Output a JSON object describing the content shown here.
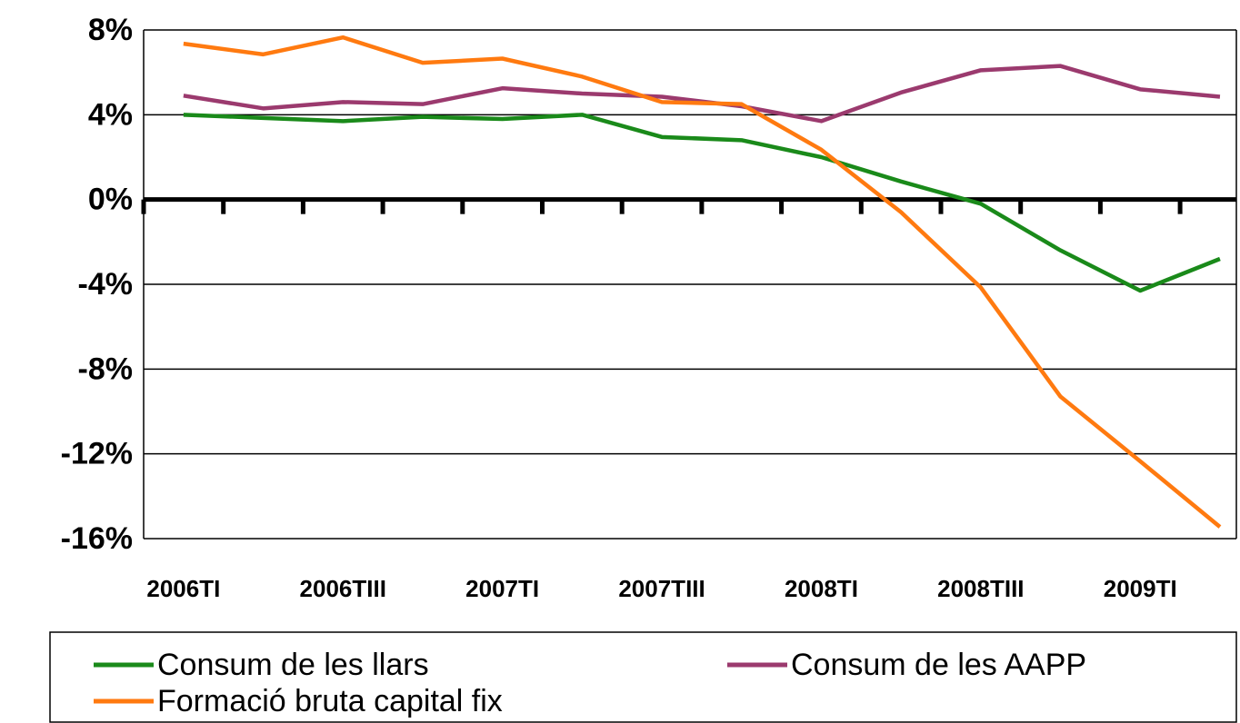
{
  "chart_data": {
    "type": "line",
    "categories": [
      "2006TI",
      null,
      "2006TIII",
      null,
      "2007TI",
      null,
      "2007TIII",
      null,
      "2008TI",
      null,
      "2008TIII",
      null,
      "2009TI",
      null
    ],
    "series": [
      {
        "name": "Consum de les llars",
        "color": "#1a8a1a",
        "values": [
          4.0,
          3.85,
          3.7,
          3.9,
          3.8,
          4.0,
          2.95,
          2.8,
          2.0,
          0.85,
          -0.2,
          -2.4,
          -4.3,
          -2.8
        ]
      },
      {
        "name": "Consum de les AAPP",
        "color": "#9b3a6e",
        "values": [
          4.9,
          4.3,
          4.6,
          4.5,
          5.25,
          5.0,
          4.85,
          4.4,
          3.7,
          5.05,
          6.1,
          6.3,
          5.2,
          4.85
        ]
      },
      {
        "name": "Formació bruta capital fix",
        "color": "#ff7a10",
        "values": [
          7.35,
          6.85,
          7.65,
          6.45,
          6.65,
          5.8,
          4.6,
          4.5,
          2.35,
          -0.6,
          -4.15,
          -9.3,
          -12.35,
          -15.45
        ]
      }
    ],
    "ylim": [
      -16,
      8
    ],
    "yticks": [
      {
        "value": -16,
        "label": "-16%"
      },
      {
        "value": -12,
        "label": "-12%"
      },
      {
        "value": -8,
        "label": "-8%"
      },
      {
        "value": -4,
        "label": "-4%"
      },
      {
        "value": 0,
        "label": "0%"
      },
      {
        "value": 4,
        "label": "4%"
      },
      {
        "value": 8,
        "label": "8%"
      }
    ],
    "grid": true
  }
}
